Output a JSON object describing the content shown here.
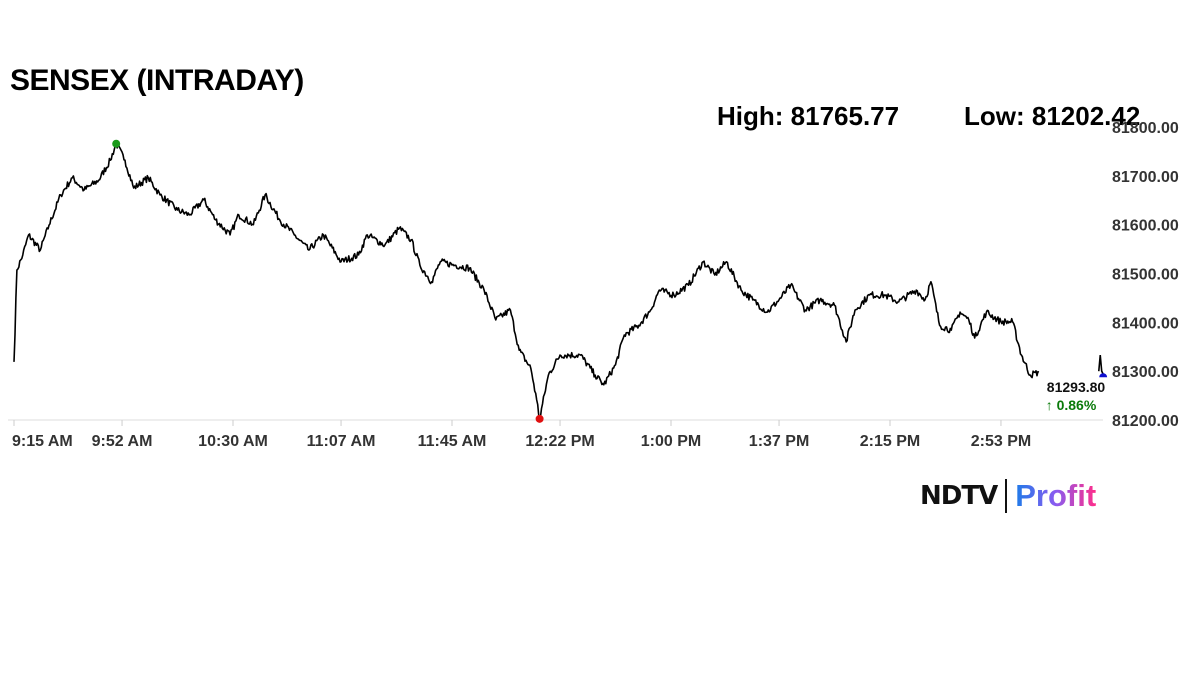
{
  "chart_data": {
    "type": "line",
    "title": "SENSEX (INTRADAY)",
    "high_label": "High: 81765.77",
    "low_label": "Low: 81202.42",
    "high": 81765.77,
    "low": 81202.42,
    "last_value": "81293.80",
    "change": "↑ 0.86%",
    "ylim": [
      81200,
      81800
    ],
    "y_ticks": [
      "81200.00",
      "81300.00",
      "81400.00",
      "81500.00",
      "81600.00",
      "81700.00",
      "81800.00"
    ],
    "x_unit": "minutes since 9:15 AM",
    "xlim": [
      0,
      375
    ],
    "x_ticks": [
      {
        "label": "9:15 AM",
        "min": 0
      },
      {
        "label": "9:52 AM",
        "min": 37
      },
      {
        "label": "10:30 AM",
        "min": 75
      },
      {
        "label": "11:07 AM",
        "min": 112
      },
      {
        "label": "11:45 AM",
        "min": 150
      },
      {
        "label": "12:22 PM",
        "min": 187
      },
      {
        "label": "1:00 PM",
        "min": 225
      },
      {
        "label": "1:37 PM",
        "min": 262
      },
      {
        "label": "2:15 PM",
        "min": 300
      },
      {
        "label": "2:53 PM",
        "min": 338
      }
    ],
    "series": [
      {
        "name": "SENSEX",
        "color": "#000000",
        "points": [
          [
            0,
            81319
          ],
          [
            1,
            81507
          ],
          [
            3,
            81538
          ],
          [
            5,
            81579
          ],
          [
            9,
            81548
          ],
          [
            12,
            81599
          ],
          [
            16,
            81661
          ],
          [
            20,
            81696
          ],
          [
            24,
            81671
          ],
          [
            29,
            81691
          ],
          [
            33,
            81732
          ],
          [
            35,
            81766
          ],
          [
            38,
            81732
          ],
          [
            41,
            81675
          ],
          [
            46,
            81696
          ],
          [
            50,
            81661
          ],
          [
            56,
            81630
          ],
          [
            60,
            81620
          ],
          [
            65,
            81651
          ],
          [
            69,
            81610
          ],
          [
            74,
            81579
          ],
          [
            77,
            81620
          ],
          [
            82,
            81600
          ],
          [
            86,
            81661
          ],
          [
            91,
            81610
          ],
          [
            96,
            81579
          ],
          [
            101,
            81548
          ],
          [
            106,
            81579
          ],
          [
            112,
            81524
          ],
          [
            118,
            81538
          ],
          [
            121,
            81579
          ],
          [
            127,
            81558
          ],
          [
            132,
            81593
          ],
          [
            136,
            81569
          ],
          [
            139,
            81517
          ],
          [
            143,
            81483
          ],
          [
            146,
            81524
          ],
          [
            151,
            81517
          ],
          [
            156,
            81511
          ],
          [
            161,
            81466
          ],
          [
            165,
            81405
          ],
          [
            170,
            81425
          ],
          [
            173,
            81343
          ],
          [
            177,
            81306
          ],
          [
            179,
            81241
          ],
          [
            180,
            81202
          ],
          [
            183,
            81292
          ],
          [
            187,
            81333
          ],
          [
            194,
            81333
          ],
          [
            199,
            81292
          ],
          [
            202,
            81272
          ],
          [
            206,
            81313
          ],
          [
            209,
            81374
          ],
          [
            214,
            81394
          ],
          [
            218,
            81425
          ],
          [
            221,
            81466
          ],
          [
            226,
            81456
          ],
          [
            231,
            81476
          ],
          [
            236,
            81524
          ],
          [
            240,
            81497
          ],
          [
            244,
            81524
          ],
          [
            249,
            81466
          ],
          [
            253,
            81446
          ],
          [
            258,
            81421
          ],
          [
            262,
            81446
          ],
          [
            266,
            81476
          ],
          [
            271,
            81425
          ],
          [
            276,
            81446
          ],
          [
            281,
            81435
          ],
          [
            285,
            81360
          ],
          [
            288,
            81425
          ],
          [
            293,
            81456
          ],
          [
            298,
            81456
          ],
          [
            303,
            81442
          ],
          [
            309,
            81466
          ],
          [
            312,
            81446
          ],
          [
            314,
            81483
          ],
          [
            317,
            81394
          ],
          [
            321,
            81384
          ],
          [
            324,
            81421
          ],
          [
            327,
            81405
          ],
          [
            329,
            81368
          ],
          [
            333,
            81421
          ],
          [
            338,
            81401
          ],
          [
            342,
            81401
          ],
          [
            345,
            81333
          ],
          [
            348,
            81292
          ],
          [
            351,
            81298
          ]
        ]
      }
    ],
    "tail_points": [
      [
        371.5,
        81300
      ],
      [
        372,
        81333
      ],
      [
        372.5,
        81300
      ],
      [
        373,
        81294
      ]
    ],
    "markers": {
      "high": {
        "min": 35,
        "value": 81765.77,
        "color": "#1a9a1a"
      },
      "low": {
        "min": 180,
        "value": 81202.42,
        "color": "#e01010"
      },
      "last": {
        "min": 373,
        "value": 81293.8,
        "color": "#1010d0"
      }
    },
    "change_color": "#0a7a0a",
    "grid": false
  },
  "brand": {
    "ndtv": "NDTV",
    "profit": "Profit"
  }
}
